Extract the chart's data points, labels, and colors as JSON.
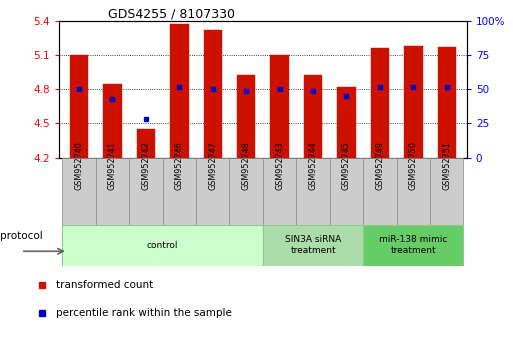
{
  "title": "GDS4255 / 8107330",
  "samples": [
    "GSM952740",
    "GSM952741",
    "GSM952742",
    "GSM952746",
    "GSM952747",
    "GSM952748",
    "GSM952743",
    "GSM952744",
    "GSM952745",
    "GSM952749",
    "GSM952750",
    "GSM952751"
  ],
  "transformed_counts": [
    5.1,
    4.85,
    4.45,
    5.38,
    5.32,
    4.93,
    5.1,
    4.93,
    4.82,
    5.16,
    5.18,
    5.17
  ],
  "percentile_ranks": [
    50,
    43,
    28,
    52,
    50,
    49,
    50,
    49,
    45,
    52,
    52,
    52
  ],
  "bar_bottom": 4.2,
  "ylim_left": [
    4.2,
    5.4
  ],
  "ylim_right": [
    0,
    100
  ],
  "yticks_left": [
    4.2,
    4.5,
    4.8,
    5.1,
    5.4
  ],
  "yticks_right": [
    0,
    25,
    50,
    75,
    100
  ],
  "ytick_labels_left": [
    "4.2",
    "4.5",
    "4.8",
    "5.1",
    "5.4"
  ],
  "ytick_labels_right": [
    "0",
    "25",
    "50",
    "75",
    "100%"
  ],
  "bar_color": "#cc1100",
  "dot_color": "#0000cc",
  "plot_bg": "#ffffff",
  "sample_box_color": "#cccccc",
  "sample_box_edge": "#888888",
  "group_configs": [
    {
      "start": 0,
      "end": 5,
      "label": "control",
      "color": "#ccffcc",
      "edgecolor": "#88cc88"
    },
    {
      "start": 6,
      "end": 8,
      "label": "SIN3A siRNA\ntreatment",
      "color": "#aaddaa",
      "edgecolor": "#88cc88"
    },
    {
      "start": 9,
      "end": 11,
      "label": "miR-138 mimic\ntreatment",
      "color": "#66cc66",
      "edgecolor": "#88cc88"
    }
  ],
  "protocol_label": "protocol",
  "legend_items": [
    {
      "label": "transformed count",
      "color": "#cc1100"
    },
    {
      "label": "percentile rank within the sample",
      "color": "#0000cc"
    }
  ]
}
